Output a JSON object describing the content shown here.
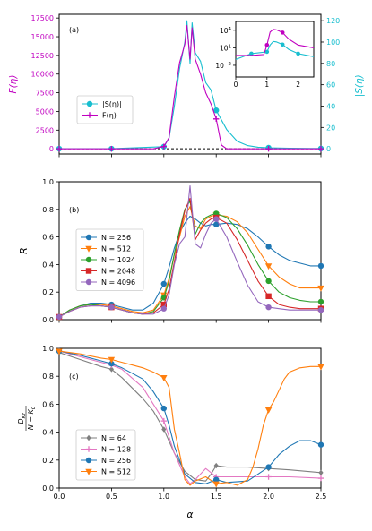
{
  "chart_data": [
    {
      "type": "line",
      "panel_label": "(a)",
      "xlim": [
        0,
        2.5
      ],
      "x_ticks": [
        0,
        0.5,
        1,
        1.5,
        2,
        2.5
      ],
      "x_tick_labels": [
        "",
        "",
        "",
        "",
        "",
        ""
      ],
      "left_axis": {
        "label": "F(η)",
        "color": "#c000c0",
        "ylim": [
          -700,
          18000
        ],
        "ticks": [
          0,
          2500,
          5000,
          7500,
          10000,
          12500,
          15000,
          17500
        ],
        "tick_labels": [
          "0",
          "2500",
          "5000",
          "7500",
          "10000",
          "12500",
          "15000",
          "17500"
        ]
      },
      "right_axis": {
        "label": "|S(η)|",
        "color": "#17becf",
        "ylim": [
          -4.9,
          126
        ],
        "ticks": [
          0,
          20,
          40,
          60,
          80,
          100,
          120
        ],
        "tick_labels": [
          "0",
          "20",
          "40",
          "60",
          "80",
          "100",
          "120"
        ]
      },
      "legend": {
        "position": "center-left",
        "entries": [
          "|S(η)|",
          "F(η)"
        ]
      },
      "series": [
        {
          "name": "|S(η)|",
          "axis": "right",
          "color": "#17becf",
          "marker": "circle",
          "x": [
            0,
            0.5,
            1,
            1.05,
            1.1,
            1.15,
            1.2,
            1.22,
            1.25,
            1.27,
            1.3,
            1.35,
            1.4,
            1.45,
            1.5,
            1.6,
            1.7,
            1.8,
            1.9,
            2.0,
            2.2,
            2.4,
            2.5
          ],
          "y": [
            0.1,
            0.1,
            2,
            10,
            40,
            75,
            100,
            120,
            80,
            118,
            90,
            82,
            62,
            55,
            36,
            18,
            7,
            3,
            1.5,
            1,
            0.5,
            0.3,
            0.3
          ],
          "marker_x": [
            0,
            0.5,
            1,
            1.5,
            2,
            2.5
          ]
        },
        {
          "name": "F(η)",
          "axis": "left",
          "color": "#c000c0",
          "marker": "plus",
          "x": [
            0,
            0.9,
            1,
            1.05,
            1.1,
            1.15,
            1.2,
            1.22,
            1.25,
            1.27,
            1.3,
            1.35,
            1.4,
            1.45,
            1.5,
            1.55,
            1.6,
            2.0,
            2.5
          ],
          "y": [
            0,
            0,
            300,
            1500,
            7000,
            11500,
            14000,
            16500,
            12000,
            16200,
            12000,
            10000,
            7500,
            6000,
            4000,
            500,
            0,
            0,
            0
          ],
          "marker_x": [
            0,
            0.5,
            1,
            1.5,
            2,
            2.5
          ]
        }
      ],
      "baseline": {
        "y": 0,
        "style": "dashed",
        "color": "#000000"
      },
      "inset": {
        "xlim": [
          0,
          2.5
        ],
        "x_ticks": [
          0,
          1,
          2
        ],
        "x_tick_labels": [
          "0",
          "1",
          "2"
        ],
        "ylog": true,
        "ylim_exp": [
          -4,
          5.5
        ],
        "y_tick_exps": [
          -2,
          1,
          4
        ],
        "y_tick_labels": [
          "10−2",
          "101",
          "104"
        ],
        "series": [
          {
            "name": "|S(η)|",
            "color": "#17becf",
            "marker_x": [
              0.5,
              1,
              1.5,
              2
            ],
            "x": [
              0,
              0.5,
              1,
              1.1,
              1.2,
              1.3,
              1.5,
              1.7,
              2,
              2.5
            ],
            "y": [
              0.1,
              1,
              2,
              30,
              120,
              100,
              36,
              5,
              1,
              0.3
            ]
          },
          {
            "name": "F(η)",
            "color": "#c000c0",
            "marker_x": [
              1,
              1.5
            ],
            "x": [
              0,
              0.5,
              0.9,
              1.0,
              1.1,
              1.2,
              1.3,
              1.4,
              1.5,
              1.7,
              2.0,
              2.5
            ],
            "y": [
              0.5,
              0.5,
              0.7,
              30,
              5000,
              14000,
              12000,
              7000,
              4000,
              300,
              30,
              10
            ]
          }
        ]
      }
    },
    {
      "type": "line",
      "panel_label": "(b)",
      "ylabel": "R",
      "xlim": [
        0,
        2.5
      ],
      "ylim": [
        0,
        1.0
      ],
      "x_ticks": [
        0,
        0.5,
        1,
        1.5,
        2,
        2.5
      ],
      "x_tick_labels": [
        "",
        "",
        "",
        "",
        "",
        ""
      ],
      "y_ticks": [
        0,
        0.2,
        0.4,
        0.6,
        0.8,
        1.0
      ],
      "y_tick_labels": [
        "0.0",
        "0.2",
        "0.4",
        "0.6",
        "0.8",
        "1.0"
      ],
      "legend": {
        "position": "center-left",
        "entries": [
          "N = 256",
          "N = 512",
          "N = 1024",
          "N = 2048",
          "N = 4096"
        ]
      },
      "series": [
        {
          "name": "N = 256",
          "color": "#1f77b4",
          "marker": "circle",
          "x": [
            0,
            0.1,
            0.2,
            0.3,
            0.4,
            0.5,
            0.6,
            0.7,
            0.8,
            0.9,
            1.0,
            1.05,
            1.1,
            1.15,
            1.2,
            1.25,
            1.3,
            1.35,
            1.4,
            1.45,
            1.5,
            1.6,
            1.7,
            1.8,
            1.9,
            2.0,
            2.1,
            2.2,
            2.3,
            2.4,
            2.5
          ],
          "y": [
            0.02,
            0.07,
            0.1,
            0.12,
            0.12,
            0.11,
            0.09,
            0.07,
            0.07,
            0.12,
            0.26,
            0.38,
            0.52,
            0.63,
            0.7,
            0.75,
            0.73,
            0.7,
            0.68,
            0.69,
            0.69,
            0.7,
            0.69,
            0.66,
            0.6,
            0.53,
            0.47,
            0.43,
            0.41,
            0.39,
            0.39
          ],
          "marker_x": [
            0,
            0.5,
            1,
            1.5,
            2,
            2.5
          ]
        },
        {
          "name": "N = 512",
          "color": "#ff7f0e",
          "marker": "triangle_down",
          "x": [
            0,
            0.1,
            0.2,
            0.3,
            0.4,
            0.5,
            0.6,
            0.7,
            0.8,
            0.9,
            1.0,
            1.05,
            1.1,
            1.15,
            1.2,
            1.25,
            1.3,
            1.35,
            1.4,
            1.45,
            1.5,
            1.6,
            1.7,
            1.8,
            1.9,
            2.0,
            2.1,
            2.2,
            2.3,
            2.4,
            2.5
          ],
          "y": [
            0.02,
            0.07,
            0.1,
            0.11,
            0.11,
            0.1,
            0.08,
            0.06,
            0.05,
            0.07,
            0.18,
            0.3,
            0.47,
            0.6,
            0.75,
            0.82,
            0.68,
            0.66,
            0.73,
            0.75,
            0.76,
            0.75,
            0.71,
            0.63,
            0.51,
            0.39,
            0.31,
            0.26,
            0.23,
            0.23,
            0.23
          ],
          "marker_x": [
            0,
            0.5,
            1,
            1.5,
            2,
            2.5
          ]
        },
        {
          "name": "N = 1024",
          "color": "#2ca02c",
          "marker": "circle",
          "x": [
            0,
            0.1,
            0.2,
            0.3,
            0.4,
            0.5,
            0.6,
            0.7,
            0.8,
            0.9,
            1.0,
            1.05,
            1.1,
            1.15,
            1.2,
            1.25,
            1.3,
            1.35,
            1.4,
            1.45,
            1.5,
            1.6,
            1.7,
            1.8,
            1.9,
            2.0,
            2.1,
            2.2,
            2.3,
            2.4,
            2.5
          ],
          "y": [
            0.02,
            0.07,
            0.1,
            0.11,
            0.1,
            0.09,
            0.07,
            0.05,
            0.04,
            0.06,
            0.16,
            0.28,
            0.48,
            0.65,
            0.8,
            0.86,
            0.62,
            0.7,
            0.74,
            0.76,
            0.77,
            0.74,
            0.66,
            0.54,
            0.4,
            0.28,
            0.2,
            0.16,
            0.14,
            0.13,
            0.13
          ],
          "marker_x": [
            0,
            0.5,
            1,
            1.5,
            2,
            2.5
          ]
        },
        {
          "name": "N = 2048",
          "color": "#d62728",
          "marker": "square",
          "x": [
            0,
            0.1,
            0.2,
            0.3,
            0.4,
            0.5,
            0.6,
            0.7,
            0.8,
            0.9,
            1.0,
            1.05,
            1.1,
            1.15,
            1.2,
            1.25,
            1.3,
            1.35,
            1.4,
            1.45,
            1.5,
            1.6,
            1.7,
            1.8,
            1.9,
            2.0,
            2.1,
            2.2,
            2.3,
            2.4,
            2.5
          ],
          "y": [
            0.02,
            0.06,
            0.09,
            0.1,
            0.1,
            0.09,
            0.07,
            0.05,
            0.04,
            0.05,
            0.11,
            0.22,
            0.42,
            0.62,
            0.79,
            0.88,
            0.58,
            0.65,
            0.7,
            0.73,
            0.74,
            0.7,
            0.58,
            0.43,
            0.28,
            0.17,
            0.11,
            0.09,
            0.08,
            0.08,
            0.08
          ],
          "marker_x": [
            0,
            0.5,
            1,
            1.5,
            2,
            2.5
          ]
        },
        {
          "name": "N = 4096",
          "color": "#9467bd",
          "marker": "circle",
          "x": [
            0,
            0.1,
            0.2,
            0.3,
            0.4,
            0.5,
            0.6,
            0.7,
            0.8,
            0.9,
            1.0,
            1.05,
            1.1,
            1.15,
            1.2,
            1.25,
            1.27,
            1.3,
            1.35,
            1.4,
            1.45,
            1.5,
            1.6,
            1.7,
            1.8,
            1.9,
            2.0,
            2.1,
            2.2,
            2.3,
            2.4,
            2.5
          ],
          "y": [
            0.02,
            0.06,
            0.09,
            0.1,
            0.1,
            0.09,
            0.07,
            0.05,
            0.04,
            0.04,
            0.08,
            0.18,
            0.4,
            0.55,
            0.6,
            0.97,
            0.8,
            0.55,
            0.52,
            0.62,
            0.7,
            0.73,
            0.6,
            0.42,
            0.25,
            0.13,
            0.09,
            0.08,
            0.07,
            0.07,
            0.07,
            0.07
          ],
          "marker_x": [
            0,
            0.5,
            1,
            1.5,
            2,
            2.5
          ]
        }
      ]
    },
    {
      "type": "line",
      "panel_label": "(c)",
      "ylabel": "D_KY / (N − K_0)",
      "xlabel": "α",
      "xlim": [
        0,
        2.5
      ],
      "ylim": [
        0,
        1.0
      ],
      "x_ticks": [
        0,
        0.5,
        1,
        1.5,
        2,
        2.5
      ],
      "x_tick_labels": [
        "0.0",
        "0.5",
        "1.0",
        "1.5",
        "2.0",
        "2.5"
      ],
      "y_ticks": [
        0,
        0.2,
        0.4,
        0.6,
        0.8,
        1.0
      ],
      "y_tick_labels": [
        "0.0",
        "0.2",
        "0.4",
        "0.6",
        "0.8",
        "1.0"
      ],
      "legend": {
        "position": "center-left",
        "entries": [
          "N = 64",
          "N = 128",
          "N = 256",
          "N = 512"
        ]
      },
      "series": [
        {
          "name": "N = 64",
          "color": "#7f7f7f",
          "marker": "diamond",
          "x": [
            0,
            0.2,
            0.4,
            0.5,
            0.6,
            0.8,
            0.9,
            1.0,
            1.1,
            1.2,
            1.3,
            1.4,
            1.45,
            1.5,
            1.6,
            1.8,
            2.0,
            2.2,
            2.5
          ],
          "y": [
            0.97,
            0.92,
            0.87,
            0.85,
            0.79,
            0.64,
            0.55,
            0.42,
            0.25,
            0.12,
            0.06,
            0.05,
            0.1,
            0.16,
            0.15,
            0.15,
            0.14,
            0.13,
            0.11
          ],
          "marker_x": [
            0,
            0.5,
            1,
            1.5,
            2,
            2.5
          ]
        },
        {
          "name": "N = 128",
          "color": "#e377c2",
          "marker": "plus",
          "x": [
            0,
            0.2,
            0.4,
            0.5,
            0.6,
            0.8,
            0.9,
            1.0,
            1.1,
            1.2,
            1.25,
            1.3,
            1.4,
            1.5,
            1.6,
            1.8,
            2.0,
            2.2,
            2.5
          ],
          "y": [
            0.98,
            0.94,
            0.9,
            0.88,
            0.85,
            0.72,
            0.6,
            0.48,
            0.25,
            0.08,
            0.03,
            0.06,
            0.14,
            0.08,
            0.08,
            0.08,
            0.08,
            0.08,
            0.07
          ],
          "marker_x": [
            0,
            0.5,
            1,
            1.5,
            2,
            2.5
          ]
        },
        {
          "name": "N = 256",
          "color": "#1f77b4",
          "marker": "circle",
          "x": [
            0,
            0.2,
            0.4,
            0.5,
            0.6,
            0.8,
            0.9,
            1.0,
            1.05,
            1.1,
            1.2,
            1.3,
            1.4,
            1.5,
            1.6,
            1.8,
            1.9,
            2.0,
            2.1,
            2.2,
            2.3,
            2.4,
            2.5
          ],
          "y": [
            0.98,
            0.95,
            0.91,
            0.89,
            0.86,
            0.78,
            0.69,
            0.57,
            0.45,
            0.3,
            0.1,
            0.04,
            0.03,
            0.06,
            0.04,
            0.05,
            0.1,
            0.15,
            0.24,
            0.3,
            0.34,
            0.34,
            0.31
          ],
          "marker_x": [
            0,
            0.5,
            1,
            1.5,
            2,
            2.5
          ]
        },
        {
          "name": "N = 512",
          "color": "#ff7f0e",
          "marker": "triangle_down",
          "x": [
            0,
            0.2,
            0.4,
            0.5,
            0.6,
            0.7,
            0.8,
            0.9,
            1.0,
            1.05,
            1.1,
            1.15,
            1.2,
            1.25,
            1.3,
            1.4,
            1.5,
            1.6,
            1.7,
            1.8,
            1.85,
            1.9,
            1.95,
            2.0,
            2.05,
            2.1,
            2.15,
            2.2,
            2.3,
            2.4,
            2.5
          ],
          "y": [
            0.98,
            0.96,
            0.93,
            0.92,
            0.9,
            0.88,
            0.86,
            0.83,
            0.79,
            0.72,
            0.42,
            0.25,
            0.06,
            0.02,
            0.05,
            0.08,
            0.03,
            0.04,
            0.02,
            0.06,
            0.15,
            0.28,
            0.45,
            0.56,
            0.62,
            0.7,
            0.78,
            0.83,
            0.86,
            0.87,
            0.87
          ],
          "marker_x": [
            0,
            0.5,
            1,
            1.5,
            2,
            2.5
          ]
        }
      ]
    }
  ]
}
